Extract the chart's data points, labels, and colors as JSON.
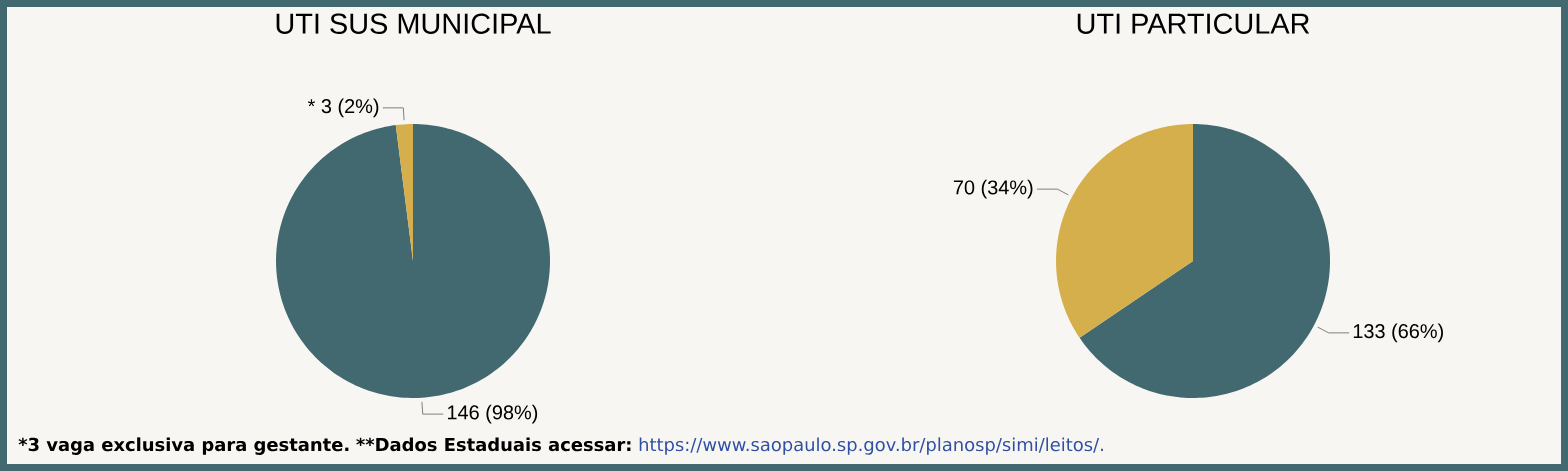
{
  "chart_data": [
    {
      "type": "pie",
      "title": "UTI SUS MUNICIPAL",
      "categories": [
        null,
        null
      ],
      "values": [
        146,
        3
      ],
      "colors": [
        "#426870",
        "#d4af4b"
      ],
      "value_labels": [
        "146 (98%)",
        "* 3 (2%)"
      ],
      "annotations": [
        "*3 vaga  exclusiva para gestante.",
        "**Dados Estaduais acessar:",
        "https://www.saopaulo.sp.gov.br/planosp/simi/leitos/."
      ]
    },
    {
      "type": "pie",
      "title": "UTI PARTICULAR",
      "categories": [
        null,
        null
      ],
      "values": [
        133,
        70
      ],
      "colors": [
        "#426870",
        "#d4af4b"
      ],
      "value_labels": [
        "133 (66%)",
        "70 (34%)"
      ]
    }
  ]
}
